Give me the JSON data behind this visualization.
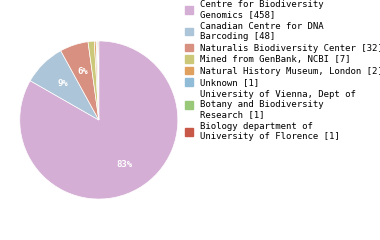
{
  "labels": [
    "Centre for Biodiversity\nGenomics [458]",
    "Canadian Centre for DNA\nBarcoding [48]",
    "Naturalis Biodiversity Center [32]",
    "Mined from GenBank, NCBI [7]",
    "Natural History Museum, London [2]",
    "Unknown [1]",
    "University of Vienna, Dept of\nBotany and Biodiversity\nResearch [1]",
    "Biology department of\nUniversity of Florence [1]"
  ],
  "values": [
    458,
    48,
    32,
    7,
    2,
    1,
    1,
    1
  ],
  "colors": [
    "#d4aed4",
    "#adc5d8",
    "#d89080",
    "#ccc87a",
    "#e0a060",
    "#90bcd8",
    "#98c878",
    "#c85848"
  ],
  "background_color": "#ffffff",
  "font_size": 6.5,
  "pct_threshold": 4.0
}
